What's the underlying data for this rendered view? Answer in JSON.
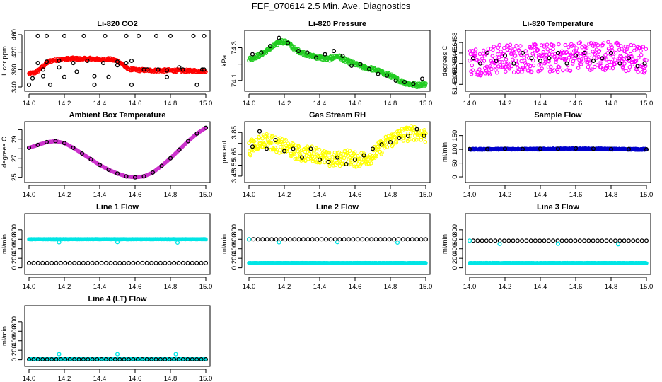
{
  "figure": {
    "title": "FEF_070614  2.5 Min. Ave. Diagnostics"
  },
  "chart_data": [
    {
      "type": "scatter",
      "title": "Li-820 CO2",
      "ylabel": "Licor ppm",
      "xlim": [
        14.0,
        15.0
      ],
      "ylim": [
        340,
        460
      ],
      "x_ticks": [
        14.0,
        14.2,
        14.4,
        14.6,
        14.8,
        15.0
      ],
      "y_ticks": [
        340,
        380,
        420,
        460
      ],
      "y_tick_labels": [
        "340",
        "380",
        "420",
        "460"
      ],
      "series": [
        {
          "name": "dense",
          "color": "#ff0000",
          "x": [
            14.0,
            14.03,
            14.06,
            14.08,
            14.1,
            14.12,
            14.15,
            14.2,
            14.25,
            14.3,
            14.35,
            14.4,
            14.45,
            14.5,
            14.53,
            14.55,
            14.58,
            14.62,
            14.7,
            14.8,
            14.9,
            14.99
          ],
          "y": [
            370,
            372,
            380,
            388,
            395,
            400,
            402,
            404,
            405,
            404,
            405,
            403,
            404,
            400,
            392,
            384,
            380,
            379,
            378,
            378,
            377,
            377
          ],
          "jitter": 3
        },
        {
          "name": "sparse",
          "color": "#000000",
          "x": [
            14.0,
            14.02,
            14.05,
            14.08,
            14.1,
            14.17,
            14.2,
            14.27,
            14.31,
            14.37,
            14.43,
            14.5,
            14.55,
            14.58,
            14.62,
            14.67,
            14.72,
            14.78,
            14.8,
            14.85,
            14.93,
            14.98,
            14.99,
            14.08,
            14.12,
            14.2,
            14.37,
            14.45,
            14.58,
            14.78,
            14.95,
            14.05,
            14.1,
            14.17,
            14.25,
            14.33,
            14.42,
            14.5,
            14.55,
            14.65,
            14.73,
            14.87,
            14.99
          ],
          "y": [
            345,
            360,
            457,
            380,
            457,
            385,
            457,
            375,
            457,
            365,
            457,
            390,
            457,
            400,
            457,
            380,
            457,
            378,
            457,
            385,
            457,
            380,
            457,
            365,
            345,
            363,
            345,
            363,
            345,
            363,
            345,
            395,
            398,
            400,
            395,
            400,
            395,
            398,
            395,
            380,
            380,
            380,
            380
          ],
          "jitter": 0
        }
      ]
    },
    {
      "type": "scatter",
      "title": "Li-820 Pressure",
      "ylabel": "kPa",
      "xlim": [
        14.0,
        15.0
      ],
      "ylim": [
        74.06,
        74.38
      ],
      "x_ticks": [
        14.0,
        14.2,
        14.4,
        14.6,
        14.8,
        15.0
      ],
      "y_ticks": [
        74.1,
        74.2,
        74.3
      ],
      "y_tick_labels": [
        "74.1",
        "",
        "74.3"
      ],
      "series": [
        {
          "name": "dense",
          "color": "#22cc22",
          "x": [
            14.0,
            14.05,
            14.1,
            14.14,
            14.18,
            14.22,
            14.26,
            14.3,
            14.35,
            14.4,
            14.45,
            14.5,
            14.55,
            14.6,
            14.65,
            14.7,
            14.75,
            14.8,
            14.85,
            14.9,
            14.95,
            15.0
          ],
          "y": [
            74.23,
            74.25,
            74.28,
            74.31,
            74.34,
            74.33,
            74.29,
            74.27,
            74.25,
            74.24,
            74.23,
            74.25,
            74.22,
            74.2,
            74.18,
            74.17,
            74.15,
            74.13,
            74.1,
            74.08,
            74.07,
            74.08
          ],
          "jitter": 0.012
        },
        {
          "name": "sparse",
          "color": "#000000",
          "x": [
            14.02,
            14.07,
            14.12,
            14.17,
            14.22,
            14.28,
            14.33,
            14.38,
            14.43,
            14.48,
            14.53,
            14.58,
            14.63,
            14.68,
            14.73,
            14.78,
            14.83,
            14.88,
            14.93,
            14.98
          ],
          "y": [
            74.26,
            74.27,
            74.31,
            74.36,
            74.33,
            74.28,
            74.27,
            74.24,
            74.26,
            74.28,
            74.25,
            74.19,
            74.2,
            74.17,
            74.14,
            74.13,
            74.1,
            74.09,
            74.08,
            74.11
          ],
          "jitter": 0
        }
      ]
    },
    {
      "type": "scatter",
      "title": "Li-820 Temperature",
      "ylabel": "degrees C",
      "xlim": [
        14.0,
        15.0
      ],
      "ylim": [
        51.4495,
        51.4595
      ],
      "x_ticks": [
        14.0,
        14.2,
        14.4,
        14.6,
        14.8,
        15.0
      ],
      "y_ticks": [
        51.45,
        51.452,
        51.454,
        51.456,
        51.458
      ],
      "y_tick_labels": [
        "51.450",
        "51.452",
        "51.454",
        "51.456",
        "51.458"
      ],
      "series": [
        {
          "name": "dense",
          "color": "#ff00ff",
          "x": [
            14.0,
            14.1,
            14.2,
            14.3,
            14.4,
            14.5,
            14.6,
            14.7,
            14.8,
            14.9,
            15.0
          ],
          "y": [
            51.4545,
            51.4545,
            51.455,
            51.455,
            51.455,
            51.455,
            51.4555,
            51.4555,
            51.4555,
            51.455,
            51.4545
          ],
          "jitter": 0.0028
        },
        {
          "name": "sparse",
          "color": "#000000",
          "x": [
            14.02,
            14.06,
            14.1,
            14.15,
            14.2,
            14.25,
            14.3,
            14.35,
            14.4,
            14.45,
            14.5,
            14.55,
            14.6,
            14.65,
            14.7,
            14.75,
            14.8,
            14.85,
            14.9,
            14.95,
            14.99
          ],
          "y": [
            51.455,
            51.454,
            51.456,
            51.4545,
            51.4555,
            51.454,
            51.456,
            51.455,
            51.4545,
            51.455,
            51.456,
            51.454,
            51.4555,
            51.456,
            51.4545,
            51.455,
            51.456,
            51.454,
            51.455,
            51.4535,
            51.454
          ],
          "jitter": 0
        }
      ]
    },
    {
      "type": "scatter",
      "title": "Ambient Box Temperature",
      "ylabel": "degrees C",
      "xlim": [
        14.0,
        15.0
      ],
      "ylim": [
        24.9,
        30.4
      ],
      "x_ticks": [
        14.0,
        14.2,
        14.4,
        14.6,
        14.8,
        15.0
      ],
      "y_ticks": [
        25,
        26,
        27,
        28,
        29,
        30
      ],
      "y_tick_labels": [
        "25",
        "",
        "27",
        "",
        "29",
        ""
      ],
      "series": [
        {
          "name": "dense",
          "color": "#cc33cc",
          "x": [
            14.0,
            14.05,
            14.1,
            14.15,
            14.2,
            14.25,
            14.3,
            14.35,
            14.4,
            14.45,
            14.5,
            14.55,
            14.6,
            14.65,
            14.7,
            14.75,
            14.8,
            14.85,
            14.9,
            14.95,
            15.0
          ],
          "y": [
            28.1,
            28.4,
            28.7,
            28.8,
            28.6,
            28.1,
            27.5,
            26.9,
            26.3,
            25.8,
            25.4,
            25.1,
            25.0,
            25.1,
            25.5,
            26.2,
            27.0,
            27.9,
            28.8,
            29.6,
            30.2
          ],
          "jitter": 0
        },
        {
          "name": "sparse",
          "color": "#000000",
          "x": [
            14.0,
            14.05,
            14.1,
            14.15,
            14.2,
            14.25,
            14.3,
            14.35,
            14.4,
            14.45,
            14.5,
            14.55,
            14.6,
            14.65,
            14.7,
            14.75,
            14.8,
            14.85,
            14.9,
            14.95,
            15.0
          ],
          "y": [
            28.1,
            28.4,
            28.7,
            28.8,
            28.6,
            28.1,
            27.5,
            26.9,
            26.3,
            25.8,
            25.4,
            25.1,
            25.0,
            25.1,
            25.5,
            26.2,
            27.0,
            27.9,
            28.8,
            29.6,
            30.2
          ],
          "jitter": 0
        }
      ]
    },
    {
      "type": "scatter",
      "title": "Gas Stream RH",
      "ylabel": "percent",
      "xlim": [
        14.0,
        15.0
      ],
      "ylim": [
        3.43,
        3.91
      ],
      "x_ticks": [
        14.0,
        14.2,
        14.4,
        14.6,
        14.8,
        15.0
      ],
      "y_ticks": [
        3.45,
        3.55,
        3.65,
        3.75,
        3.85
      ],
      "y_tick_labels": [
        "3.45",
        "3.55",
        "3.65",
        "",
        "3.85"
      ],
      "series": [
        {
          "name": "dense",
          "color": "#ffff00",
          "x": [
            14.0,
            14.05,
            14.1,
            14.15,
            14.2,
            14.25,
            14.3,
            14.35,
            14.4,
            14.45,
            14.5,
            14.55,
            14.6,
            14.65,
            14.7,
            14.75,
            14.8,
            14.85,
            14.9,
            14.95,
            15.0
          ],
          "y": [
            3.7,
            3.76,
            3.78,
            3.74,
            3.72,
            3.68,
            3.65,
            3.66,
            3.64,
            3.6,
            3.6,
            3.63,
            3.6,
            3.61,
            3.64,
            3.72,
            3.78,
            3.82,
            3.84,
            3.85,
            3.82
          ],
          "jitter": 0.07
        },
        {
          "name": "sparse",
          "color": "#000000",
          "x": [
            14.02,
            14.06,
            14.1,
            14.15,
            14.2,
            14.25,
            14.3,
            14.35,
            14.4,
            14.45,
            14.5,
            14.55,
            14.6,
            14.65,
            14.7,
            14.75,
            14.8,
            14.85,
            14.9,
            14.95,
            14.99
          ],
          "y": [
            3.72,
            3.86,
            3.7,
            3.78,
            3.68,
            3.7,
            3.62,
            3.7,
            3.6,
            3.58,
            3.62,
            3.56,
            3.6,
            3.64,
            3.7,
            3.74,
            3.76,
            3.8,
            3.82,
            3.88,
            3.82
          ],
          "jitter": 0
        }
      ]
    },
    {
      "type": "scatter",
      "title": "Sample Flow",
      "ylabel": "ml/min",
      "xlim": [
        14.0,
        15.0
      ],
      "ylim": [
        -5,
        185
      ],
      "x_ticks": [
        14.0,
        14.2,
        14.4,
        14.6,
        14.8,
        15.0
      ],
      "y_ticks": [
        0,
        50,
        100,
        150
      ],
      "y_tick_labels": [
        "0",
        "50",
        "100",
        "150"
      ],
      "series": [
        {
          "name": "dense",
          "color": "#0000cc",
          "x": [
            14.0,
            14.2,
            14.4,
            14.6,
            14.8,
            15.0
          ],
          "y": [
            100,
            101,
            101,
            102,
            101,
            100
          ],
          "jitter": 2
        },
        {
          "name": "sparse",
          "color": "#000000",
          "x": [
            14.0,
            14.1,
            14.2,
            14.3,
            14.4,
            14.5,
            14.6,
            14.7,
            14.8,
            14.9,
            15.0
          ],
          "y": [
            101,
            101,
            102,
            101,
            102,
            102,
            103,
            102,
            101,
            101,
            100
          ],
          "jitter": 0
        }
      ]
    },
    {
      "type": "scatter",
      "title": "Line 1 Flow",
      "ylabel": "ml/min",
      "xlim": [
        14.0,
        15.0
      ],
      "ylim": [
        -50,
        1050
      ],
      "x_ticks": [
        14.0,
        14.2,
        14.4,
        14.6,
        14.8,
        15.0
      ],
      "y_ticks": [
        0,
        200,
        400,
        600,
        800
      ],
      "y_tick_labels": [
        "0",
        "200",
        "400",
        "600",
        "800"
      ],
      "series": [
        {
          "name": "dense",
          "color": "#00e5e5",
          "x": [
            14.0,
            15.0
          ],
          "y": [
            600,
            600
          ],
          "jitter": 4
        },
        {
          "name": "sparse",
          "color": "#000000",
          "x": [
            14.0,
            15.0
          ],
          "y": [
            100,
            100
          ],
          "jitter": 0
        },
        {
          "name": "outliers",
          "color": "#00e5e5",
          "x": [
            14.17,
            14.5,
            14.84
          ],
          "y": [
            535,
            540,
            530
          ],
          "jitter": 0
        }
      ]
    },
    {
      "type": "scatter",
      "title": "Line 2 Flow",
      "ylabel": "ml/min",
      "xlim": [
        14.0,
        15.0
      ],
      "ylim": [
        -50,
        1050
      ],
      "x_ticks": [
        14.0,
        14.2,
        14.4,
        14.6,
        14.8,
        15.0
      ],
      "y_ticks": [
        0,
        200,
        400,
        600,
        800
      ],
      "y_tick_labels": [
        "0",
        "200",
        "400",
        "600",
        "800"
      ],
      "series": [
        {
          "name": "dense",
          "color": "#00e5e5",
          "x": [
            14.0,
            15.0
          ],
          "y": [
            100,
            100
          ],
          "jitter": 4
        },
        {
          "name": "sparse",
          "color": "#000000",
          "x": [
            14.0,
            15.0
          ],
          "y": [
            600,
            600
          ],
          "jitter": 0
        },
        {
          "name": "outliers",
          "color": "#00e5e5",
          "x": [
            14.0,
            14.17,
            14.5,
            14.84
          ],
          "y": [
            600,
            535,
            540,
            530
          ],
          "jitter": 0
        }
      ]
    },
    {
      "type": "scatter",
      "title": "Line 3 Flow",
      "ylabel": "ml/min",
      "xlim": [
        14.0,
        15.0
      ],
      "ylim": [
        -50,
        1050
      ],
      "x_ticks": [
        14.0,
        14.2,
        14.4,
        14.6,
        14.8,
        15.0
      ],
      "y_ticks": [
        0,
        200,
        400,
        600,
        800
      ],
      "y_tick_labels": [
        "0",
        "200",
        "400",
        "600",
        "800"
      ],
      "series": [
        {
          "name": "dense",
          "color": "#00e5e5",
          "x": [
            14.0,
            15.0
          ],
          "y": [
            100,
            100
          ],
          "jitter": 4
        },
        {
          "name": "sparse",
          "color": "#000000",
          "x": [
            14.02,
            15.0
          ],
          "y": [
            570,
            570
          ],
          "jitter": 0
        },
        {
          "name": "outliers",
          "color": "#00e5e5",
          "x": [
            14.0,
            14.17,
            14.5,
            14.84
          ],
          "y": [
            570,
            500,
            505,
            495
          ],
          "jitter": 0
        }
      ]
    },
    {
      "type": "scatter",
      "title": "Line 4 (LT) Flow",
      "ylabel": "ml/min",
      "xlim": [
        14.0,
        15.0
      ],
      "ylim": [
        -50,
        1050
      ],
      "x_ticks": [
        14.0,
        14.2,
        14.4,
        14.6,
        14.8,
        15.0
      ],
      "y_ticks": [
        0,
        200,
        400,
        600,
        800
      ],
      "y_tick_labels": [
        "0",
        "200",
        "400",
        "600",
        "800"
      ],
      "series": [
        {
          "name": "dense",
          "color": "#00e5e5",
          "x": [
            14.0,
            15.0
          ],
          "y": [
            15,
            15
          ],
          "jitter": 2
        },
        {
          "name": "sparse",
          "color": "#000000",
          "x": [
            14.0,
            15.0
          ],
          "y": [
            10,
            10
          ],
          "jitter": 0
        },
        {
          "name": "outliers",
          "color": "#00e5e5",
          "x": [
            14.17,
            14.5,
            14.83
          ],
          "y": [
            120,
            120,
            120
          ],
          "jitter": 0
        }
      ]
    }
  ]
}
